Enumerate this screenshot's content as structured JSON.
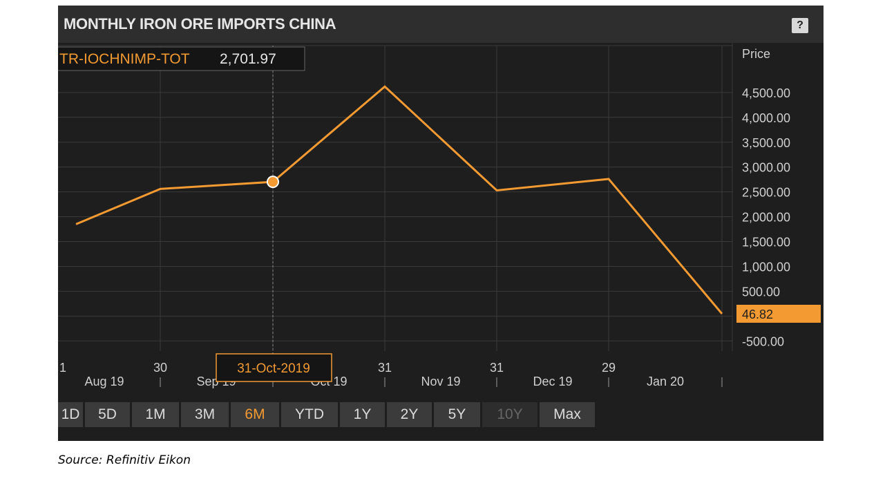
{
  "widget": {
    "title": "MONTHLY IRON ORE IMPORTS CHINA",
    "help_label": "?"
  },
  "chart_data": {
    "type": "line",
    "title": "MONTHLY IRON ORE IMPORTS CHINA",
    "ylabel": "Price",
    "series": [
      {
        "name": "TR-IOCHNIMP-TOT",
        "color": "#f39a32",
        "points": [
          {
            "x": "31-Jul-2019",
            "y": 1850
          },
          {
            "x": "30-Aug-2019",
            "y": 2560
          },
          {
            "x": "31-Oct-2019",
            "y": 2701.97
          },
          {
            "x": "30-Nov-2019",
            "y": 4620
          },
          {
            "x": "31-Dec-2019",
            "y": 2530
          },
          {
            "x": "31-Jan-2020",
            "y": 2760
          },
          {
            "x": "29-Feb-2020",
            "y": 46.82
          }
        ]
      }
    ],
    "ylim": [
      -500,
      4500
    ],
    "y_ticks": [
      "4,500.00",
      "4,000.00",
      "3,500.00",
      "3,000.00",
      "2,500.00",
      "2,000.00",
      "1,500.00",
      "1,000.00",
      "500.00",
      "-500.00"
    ],
    "y_tick_values": [
      4500,
      4000,
      3500,
      3000,
      2500,
      2000,
      1500,
      1000,
      500,
      -500
    ],
    "x_day_ticks": [
      "1",
      "30",
      "30",
      "31",
      "31",
      "29"
    ],
    "x_month_labels": [
      "Aug 19",
      "Sep 19",
      "Oct 19",
      "Nov 19",
      "Dec 19",
      "Jan 20"
    ],
    "last_value_label": "46.82",
    "crosshair": {
      "series_label": "TR-IOCHNIMP-TOT",
      "value_label": "2,701.97",
      "date_label": "31-Oct-2019"
    },
    "grid": true
  },
  "toolbar": {
    "buttons": [
      {
        "label": "1D",
        "state": "normal"
      },
      {
        "label": "5D",
        "state": "normal"
      },
      {
        "label": "1M",
        "state": "normal"
      },
      {
        "label": "3M",
        "state": "normal"
      },
      {
        "label": "6M",
        "state": "active"
      },
      {
        "label": "YTD",
        "state": "normal"
      },
      {
        "label": "1Y",
        "state": "normal"
      },
      {
        "label": "2Y",
        "state": "normal"
      },
      {
        "label": "5Y",
        "state": "normal"
      },
      {
        "label": "10Y",
        "state": "disabled"
      },
      {
        "label": "Max",
        "state": "normal"
      }
    ]
  },
  "source": "Source: Refinitiv Eikon",
  "colors": {
    "accent": "#f39a32",
    "background": "#1e1e1e",
    "grid": "#3a3a3a",
    "text": "#d0d0d0"
  }
}
